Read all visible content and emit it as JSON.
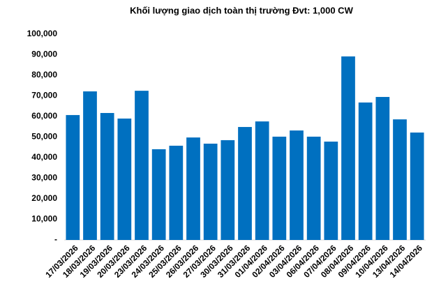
{
  "chart_data": {
    "type": "bar",
    "title": "Khối lượng giao dịch toàn thị trường Đvt: 1,000 CW",
    "categories": [
      "17/03/2026",
      "18/03/2026",
      "19/03/2026",
      "20/03/2026",
      "23/03/2026",
      "24/03/2026",
      "25/03/2026",
      "26/03/2026",
      "27/03/2026",
      "30/03/2026",
      "31/03/2026",
      "01/04/2026",
      "02/04/2026",
      "03/04/2026",
      "06/04/2026",
      "07/04/2026",
      "08/04/2026",
      "09/04/2026",
      "10/04/2026",
      "13/04/2026",
      "14/04/2026"
    ],
    "values": [
      60700,
      72200,
      61700,
      59000,
      72500,
      44100,
      45800,
      49800,
      46800,
      48500,
      54900,
      57600,
      50200,
      53200,
      50200,
      47800,
      89200,
      66800,
      69500,
      58600,
      52200
    ],
    "color": "#0070c0",
    "ylim": [
      0,
      100000
    ],
    "yticks": [
      {
        "value": 0,
        "label": "-"
      },
      {
        "value": 10000,
        "label": "10,000"
      },
      {
        "value": 20000,
        "label": "20,000"
      },
      {
        "value": 30000,
        "label": "30,000"
      },
      {
        "value": 40000,
        "label": "40,000"
      },
      {
        "value": 50000,
        "label": "50,000"
      },
      {
        "value": 60000,
        "label": "60,000"
      },
      {
        "value": 70000,
        "label": "70,000"
      },
      {
        "value": 80000,
        "label": "80,000"
      },
      {
        "value": 90000,
        "label": "90,000"
      },
      {
        "value": 100000,
        "label": "100,000"
      }
    ],
    "grid": false
  }
}
